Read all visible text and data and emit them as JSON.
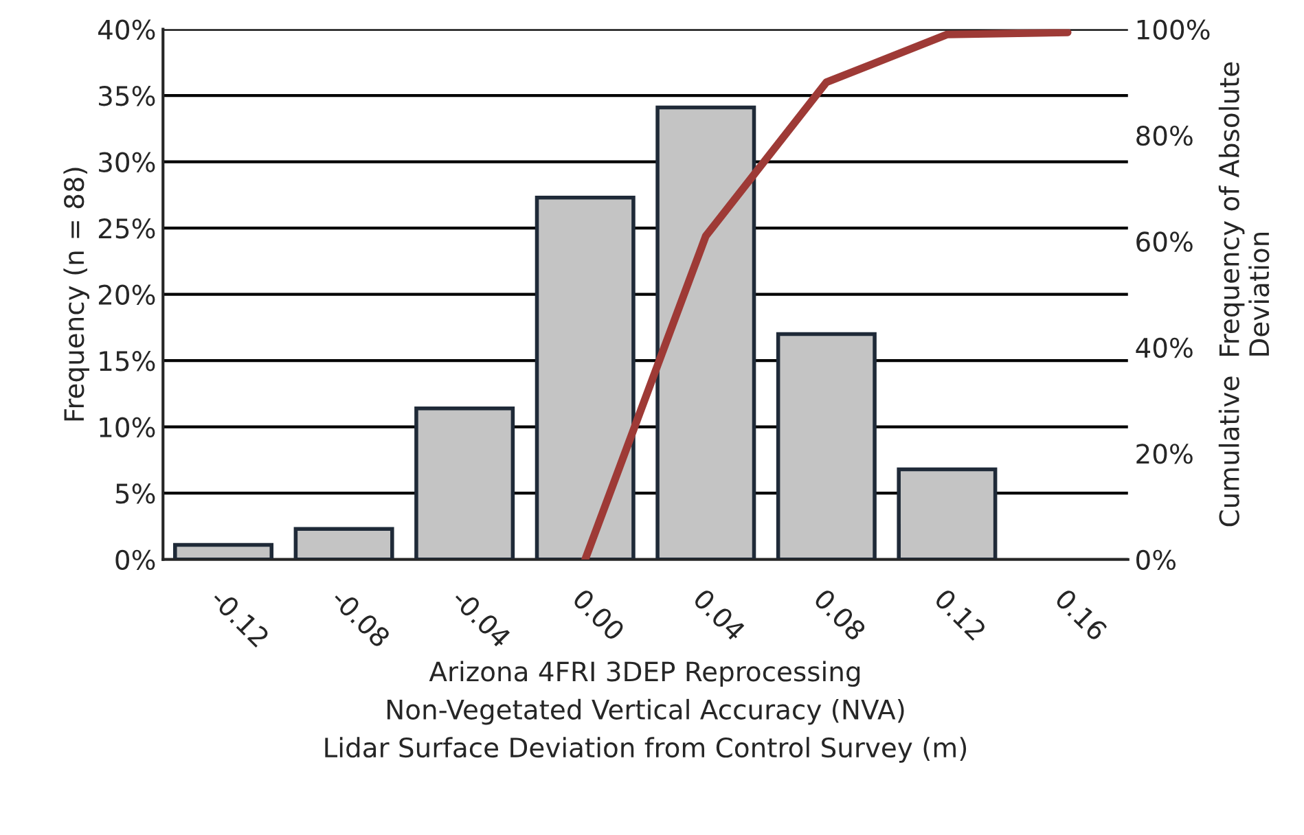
{
  "chart_data": {
    "type": "bar",
    "xlabel": "Arizona 4FRI 3DEP Reprocessing\nNon-Vegetated Vertical Accuracy (NVA)\nLidar Surface Deviation from Control Survey (m)",
    "ylabel": "Frequency (n = 88)",
    "y2label": "Cumulative  Frequency of Absolute\nDeviation",
    "categories": [
      "-0.12",
      "-0.08",
      "-0.04",
      "0.00",
      "0.04",
      "0.08",
      "0.12",
      "0.16"
    ],
    "series": [
      {
        "color": "#c4c4c4",
        "values": [
          1.1,
          2.3,
          11.4,
          27.3,
          34.1,
          17.0,
          6.8,
          null
        ]
      },
      {
        "type": "line",
        "axis": "y2",
        "color": "#9e3a36",
        "values": [
          null,
          null,
          null,
          0,
          61,
          90,
          99,
          99.4
        ]
      }
    ],
    "ylim": [
      0,
      40
    ],
    "yticks": [
      {
        "value": 0,
        "label": "0%"
      },
      {
        "value": 5,
        "label": "5%"
      },
      {
        "value": 10,
        "label": "10%"
      },
      {
        "value": 15,
        "label": "15%"
      },
      {
        "value": 20,
        "label": "20%"
      },
      {
        "value": 25,
        "label": "25%"
      },
      {
        "value": 30,
        "label": "30%"
      },
      {
        "value": 35,
        "label": "35%"
      },
      {
        "value": 40,
        "label": "40%"
      }
    ],
    "y2lim": [
      0,
      100
    ],
    "y2ticks": [
      {
        "value": 0,
        "label": "0%"
      },
      {
        "value": 20,
        "label": "20%"
      },
      {
        "value": 40,
        "label": "40%"
      },
      {
        "value": 60,
        "label": "60%"
      },
      {
        "value": 80,
        "label": "80%"
      },
      {
        "value": 100,
        "label": "100%"
      }
    ],
    "grid": "y"
  }
}
